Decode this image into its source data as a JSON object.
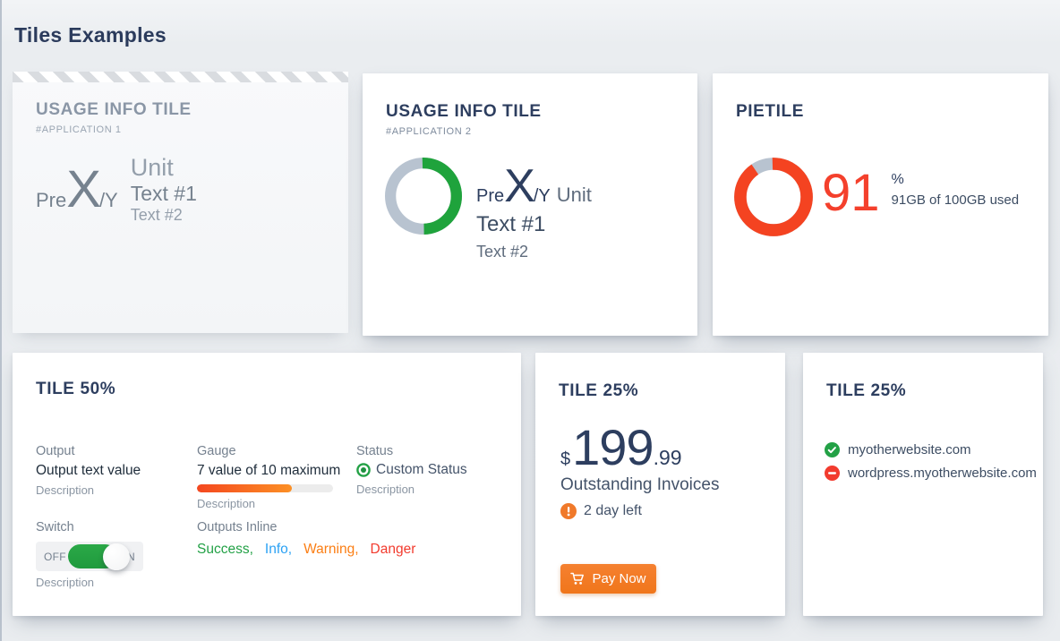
{
  "page": {
    "title": "Tiles Examples"
  },
  "tiles": {
    "usage1": {
      "title": "USAGE INFO TILE",
      "subtitle": "#APPLICATION 1",
      "prefix": "Pre",
      "value": "X",
      "suffix": "/Y",
      "unit": "Unit",
      "text1": "Text #1",
      "text2": "Text #2"
    },
    "usage2": {
      "title": "USAGE INFO TILE",
      "subtitle": "#APPLICATION 2",
      "prefix": "Pre",
      "value": "X",
      "suffix": "/Y",
      "unit": "Unit",
      "text1": "Text #1",
      "text2": "Text #2",
      "percent": 50
    },
    "pie": {
      "title": "PIETILE",
      "percent": 91,
      "value": "91",
      "unit": "%",
      "caption": "91GB of 100GB used"
    },
    "tile50": {
      "title": "TILE 50%",
      "output": {
        "label": "Output",
        "value": "Output text value",
        "description": "Description"
      },
      "gauge": {
        "label": "Gauge",
        "value": "7 value of 10 maximum",
        "description": "Description",
        "percent": 70,
        "value_num": 7,
        "max": 10
      },
      "status": {
        "label": "Status",
        "value": "Custom Status",
        "description": "Description"
      },
      "switch": {
        "label": "Switch",
        "off": "OFF",
        "on": "ON",
        "description": "Description",
        "state": "on"
      },
      "outputs_inline": {
        "label": "Outputs Inline",
        "items": [
          {
            "text": "Success,",
            "color": "#23a146"
          },
          {
            "text": "Info,",
            "color": "#2aa1f4"
          },
          {
            "text": "Warning,",
            "color": "#fb7e14"
          },
          {
            "text": "Danger",
            "color": "#f23b2e"
          }
        ]
      }
    },
    "invoice": {
      "title": "TILE 25%",
      "currency": "$",
      "amount": "199",
      "cents": ".99",
      "caption": "Outstanding Invoices",
      "alert": "2 day left",
      "pay_button": "Pay Now"
    },
    "sites": {
      "title": "TILE 25%",
      "items": [
        {
          "text": "myotherwebsite.com",
          "status": "ok"
        },
        {
          "text": "wordpress.myotherwebsite.com",
          "status": "blocked"
        }
      ]
    }
  },
  "colors": {
    "heading_navy": "#2d3e5f",
    "donut_green": "#1fa33c",
    "donut_track": "#b8c3d0",
    "pie_red": "#f44321",
    "pie_value_text": "#f4402c",
    "gauge_from": "#f4471f",
    "gauge_to": "#fc9025",
    "button_orange": "#f0761b",
    "alert_orange": "#f0792a",
    "success": "#23a146",
    "info": "#2aa1f4",
    "warning": "#fb7e14",
    "danger": "#f23b2e"
  }
}
